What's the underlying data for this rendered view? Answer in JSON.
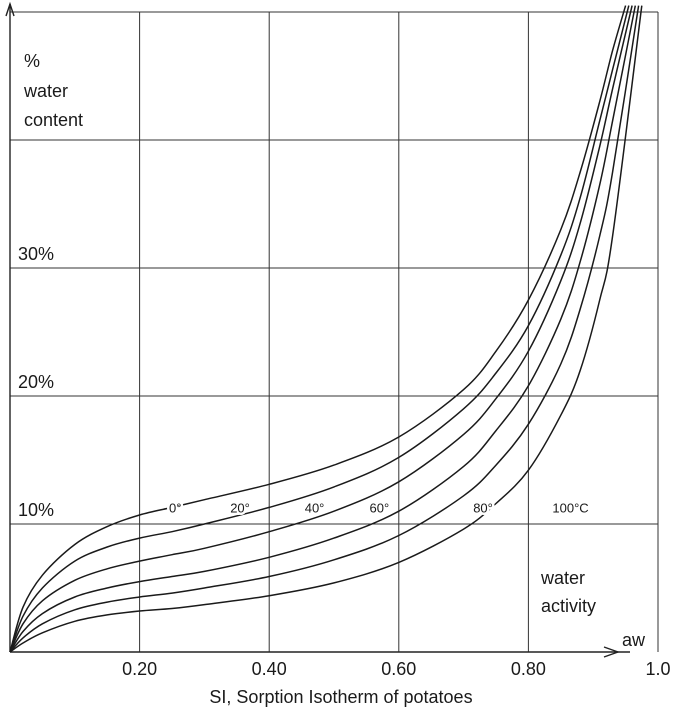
{
  "chart_data": {
    "type": "line",
    "title": "SI, Sorption Isotherm of potatoes",
    "ylabel_lines": [
      "%",
      "water",
      "content"
    ],
    "xlabel_lines": [
      "water",
      "activity"
    ],
    "x_axis_symbol": "aw",
    "xlim": [
      0,
      1.0
    ],
    "ylim": [
      0,
      50
    ],
    "x_ticks": [
      {
        "value": 0.2,
        "label": "0.20"
      },
      {
        "value": 0.4,
        "label": "0.40"
      },
      {
        "value": 0.6,
        "label": "0.60"
      },
      {
        "value": 0.8,
        "label": "0.80"
      },
      {
        "value": 1.0,
        "label": "1.0"
      }
    ],
    "y_ticks": [
      {
        "value": 10,
        "label": "10%"
      },
      {
        "value": 20,
        "label": "20%"
      },
      {
        "value": 30,
        "label": "30%"
      }
    ],
    "grid": true,
    "series": [
      {
        "name": "0°",
        "x": [
          0,
          0.02,
          0.05,
          0.1,
          0.15,
          0.2,
          0.25,
          0.3,
          0.4,
          0.5,
          0.6,
          0.7,
          0.75,
          0.8,
          0.85,
          0.88,
          0.91,
          0.93,
          0.95
        ],
        "y": [
          0,
          3.5,
          6.0,
          8.4,
          9.8,
          10.7,
          11.3,
          11.9,
          13.1,
          14.6,
          16.8,
          20.5,
          23.5,
          27.5,
          33.0,
          37.5,
          43.0,
          47.0,
          50.5
        ]
      },
      {
        "name": "20°",
        "x": [
          0,
          0.02,
          0.05,
          0.1,
          0.15,
          0.2,
          0.25,
          0.3,
          0.4,
          0.5,
          0.6,
          0.7,
          0.75,
          0.8,
          0.85,
          0.88,
          0.91,
          0.93,
          0.955
        ],
        "y": [
          0,
          2.8,
          5.0,
          7.1,
          8.2,
          8.9,
          9.4,
          10.0,
          11.3,
          12.9,
          15.2,
          19.0,
          21.8,
          25.5,
          31.0,
          35.5,
          41.5,
          45.5,
          50.5
        ]
      },
      {
        "name": "40°",
        "x": [
          0,
          0.02,
          0.05,
          0.1,
          0.15,
          0.2,
          0.25,
          0.3,
          0.4,
          0.5,
          0.6,
          0.7,
          0.75,
          0.8,
          0.85,
          0.88,
          0.91,
          0.93,
          0.96
        ],
        "y": [
          0,
          2.2,
          4.0,
          5.6,
          6.5,
          7.1,
          7.6,
          8.1,
          9.4,
          11.0,
          13.3,
          17.0,
          19.8,
          23.5,
          29.0,
          33.5,
          39.5,
          44.0,
          50.5
        ]
      },
      {
        "name": "60°",
        "x": [
          0,
          0.02,
          0.05,
          0.1,
          0.15,
          0.2,
          0.25,
          0.3,
          0.4,
          0.5,
          0.6,
          0.7,
          0.75,
          0.8,
          0.85,
          0.88,
          0.91,
          0.93,
          0.965
        ],
        "y": [
          0,
          1.6,
          3.0,
          4.3,
          5.0,
          5.5,
          5.9,
          6.3,
          7.4,
          8.9,
          11.0,
          14.5,
          17.3,
          20.8,
          26.0,
          30.5,
          36.5,
          41.5,
          50.5
        ]
      },
      {
        "name": "80°",
        "x": [
          0,
          0.02,
          0.05,
          0.1,
          0.15,
          0.2,
          0.25,
          0.3,
          0.4,
          0.5,
          0.6,
          0.7,
          0.75,
          0.8,
          0.85,
          0.88,
          0.91,
          0.93,
          0.97
        ],
        "y": [
          0,
          1.1,
          2.2,
          3.3,
          3.9,
          4.3,
          4.6,
          5.0,
          5.9,
          7.2,
          9.1,
          12.2,
          14.6,
          17.8,
          22.5,
          26.8,
          32.5,
          37.5,
          50.5
        ]
      },
      {
        "name": "100°C",
        "x": [
          0,
          0.02,
          0.05,
          0.1,
          0.15,
          0.2,
          0.25,
          0.3,
          0.4,
          0.5,
          0.6,
          0.7,
          0.75,
          0.8,
          0.85,
          0.88,
          0.91,
          0.93,
          0.975
        ],
        "y": [
          0,
          0.7,
          1.5,
          2.4,
          2.9,
          3.2,
          3.4,
          3.7,
          4.4,
          5.4,
          7.0,
          9.6,
          11.6,
          14.2,
          18.5,
          22.0,
          27.5,
          32.5,
          50.5
        ]
      }
    ],
    "curve_labels": [
      {
        "text": "0°",
        "x": 0.255,
        "y": 11.3
      },
      {
        "text": "20°",
        "x": 0.355,
        "y": 11.3
      },
      {
        "text": "40°",
        "x": 0.47,
        "y": 11.3
      },
      {
        "text": "60°",
        "x": 0.57,
        "y": 11.3
      },
      {
        "text": "80°",
        "x": 0.73,
        "y": 11.3
      },
      {
        "text": "100°C",
        "x": 0.865,
        "y": 11.3
      }
    ]
  }
}
